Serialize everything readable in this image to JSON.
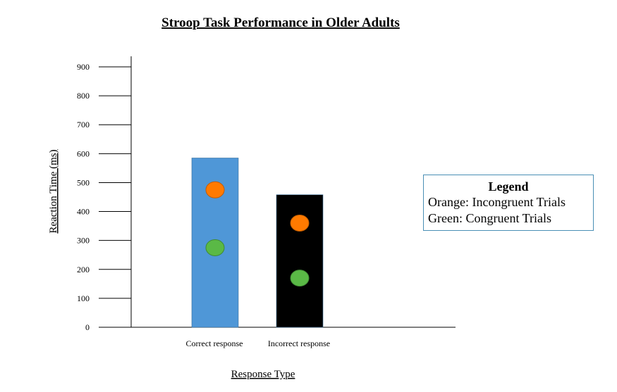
{
  "chart_data": {
    "type": "bar",
    "title": "Stroop Task Performance in Older Adults",
    "xlabel": "Response Type",
    "ylabel": "Reaction Time (ms)",
    "ylim": [
      0,
      900
    ],
    "yticks": [
      0,
      100,
      200,
      300,
      400,
      500,
      600,
      700,
      800,
      900
    ],
    "categories": [
      "Correct response",
      "Incorrect response"
    ],
    "values": [
      585,
      458
    ],
    "bar_colors": [
      "#4f97d7",
      "#000000"
    ],
    "points": [
      {
        "name": "Incongruent Trials",
        "color": "#ff7a00",
        "values": [
          475,
          360
        ]
      },
      {
        "name": "Congruent Trials",
        "color": "#5ab946",
        "values": [
          275,
          170
        ]
      }
    ],
    "grid": false,
    "legend_placement": "right"
  },
  "legend": {
    "title": "Legend",
    "entries": [
      "Orange: Incongruent Trials",
      "Green: Congruent Trials"
    ]
  }
}
